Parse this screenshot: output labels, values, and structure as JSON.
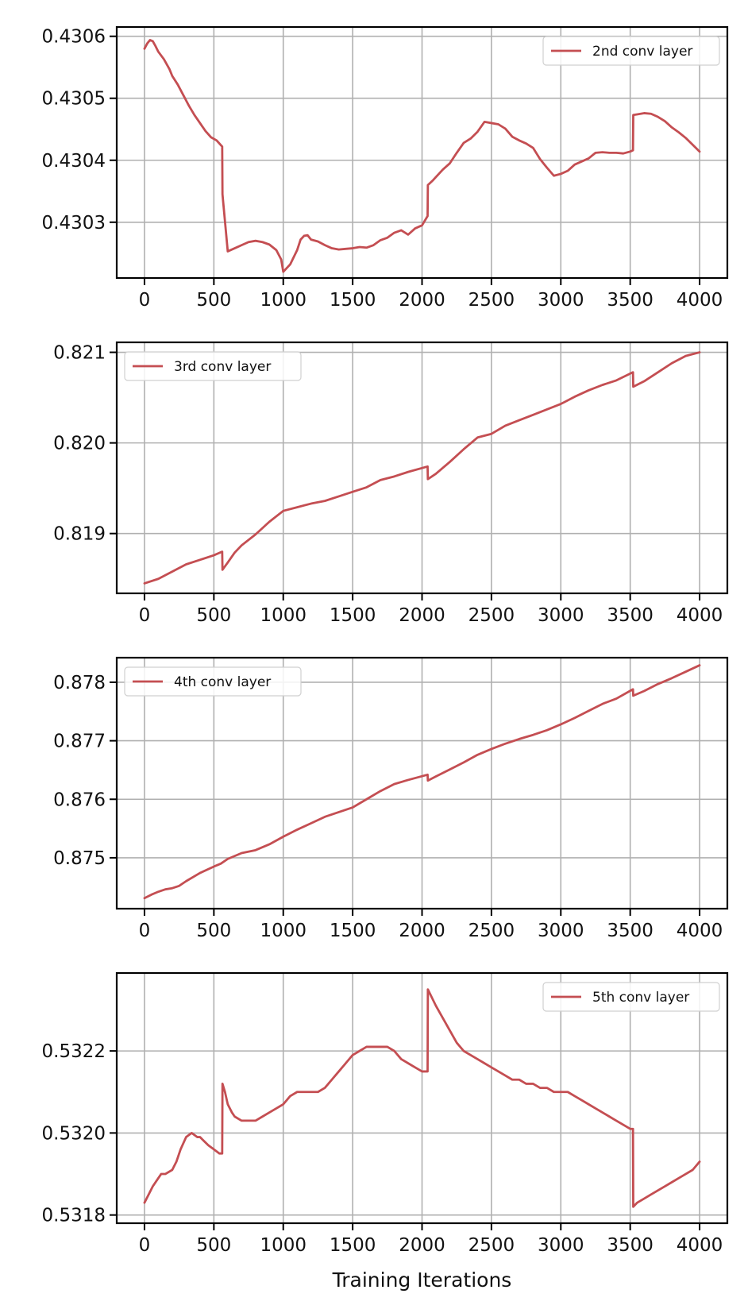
{
  "chart_data": [
    {
      "type": "line",
      "xlabel": "",
      "ylabel": "",
      "xlim": [
        -200,
        4200
      ],
      "xticks": [
        0,
        500,
        1000,
        1500,
        2000,
        2500,
        3000,
        3500,
        4000
      ],
      "ylim": [
        0.43021,
        0.430615
      ],
      "yticks": [
        0.4303,
        0.4304,
        0.4305,
        0.4306
      ],
      "ytick_decimals": 4,
      "grid": true,
      "legend": "top-right",
      "color": "#c44e52",
      "series": [
        {
          "name": "2nd conv layer",
          "x": [
            0,
            20,
            40,
            60,
            80,
            100,
            140,
            180,
            200,
            240,
            280,
            320,
            360,
            400,
            440,
            480,
            520,
            560,
            562,
            600,
            650,
            700,
            750,
            800,
            850,
            900,
            950,
            985,
            1000,
            1050,
            1100,
            1125,
            1150,
            1175,
            1200,
            1250,
            1300,
            1350,
            1400,
            1450,
            1500,
            1550,
            1600,
            1650,
            1700,
            1750,
            1800,
            1850,
            1900,
            1950,
            2000,
            2040,
            2042,
            2080,
            2150,
            2200,
            2250,
            2300,
            2350,
            2400,
            2450,
            2500,
            2550,
            2600,
            2650,
            2700,
            2750,
            2800,
            2850,
            2900,
            2950,
            3000,
            3050,
            3100,
            3150,
            3200,
            3250,
            3300,
            3350,
            3400,
            3450,
            3500,
            3520,
            3522,
            3550,
            3600,
            3650,
            3700,
            3750,
            3800,
            3850,
            3900,
            3950,
            4000
          ],
          "values": [
            0.43058,
            0.4305885,
            0.430594,
            0.430592,
            0.430584,
            0.430575,
            0.430563,
            0.430547,
            0.430536,
            0.430522,
            0.430505,
            0.430488,
            0.430473,
            0.43046,
            0.430447,
            0.430437,
            0.430432,
            0.430422,
            0.430345,
            0.430253,
            0.430258,
            0.430263,
            0.430268,
            0.43027,
            0.430268,
            0.430264,
            0.430255,
            0.43024,
            0.43022,
            0.430232,
            0.430255,
            0.430272,
            0.430278,
            0.430279,
            0.430272,
            0.430269,
            0.430263,
            0.430258,
            0.430256,
            0.430257,
            0.430258,
            0.43026,
            0.430259,
            0.430263,
            0.430271,
            0.430275,
            0.430283,
            0.430287,
            0.43028,
            0.43029,
            0.430295,
            0.43031,
            0.43036,
            0.430368,
            0.430385,
            0.430395,
            0.430412,
            0.430428,
            0.430435,
            0.430446,
            0.430462,
            0.43046,
            0.430458,
            0.430451,
            0.430438,
            0.430432,
            0.430427,
            0.43042,
            0.430402,
            0.430388,
            0.430375,
            0.430378,
            0.430383,
            0.430393,
            0.430398,
            0.430403,
            0.430412,
            0.430413,
            0.430412,
            0.430412,
            0.430411,
            0.430414,
            0.430416,
            0.430473,
            0.430474,
            0.430476,
            0.430475,
            0.43047,
            0.430463,
            0.430453,
            0.430445,
            0.430436,
            0.430425,
            0.430414
          ]
        }
      ]
    },
    {
      "type": "line",
      "xlabel": "",
      "ylabel": "",
      "xlim": [
        -200,
        4200
      ],
      "xticks": [
        0,
        500,
        1000,
        1500,
        2000,
        2500,
        3000,
        3500,
        4000
      ],
      "ylim": [
        0.81834,
        0.82111
      ],
      "yticks": [
        0.819,
        0.82,
        0.821
      ],
      "ytick_decimals": 3,
      "grid": true,
      "legend": "top-left",
      "color": "#c44e52",
      "series": [
        {
          "name": "3rd conv layer",
          "x": [
            0,
            100,
            200,
            300,
            400,
            500,
            560,
            562,
            600,
            650,
            700,
            800,
            900,
            1000,
            1100,
            1200,
            1300,
            1400,
            1500,
            1600,
            1700,
            1800,
            1900,
            2040,
            2042,
            2100,
            2200,
            2300,
            2400,
            2500,
            2600,
            2700,
            2800,
            2900,
            3000,
            3100,
            3200,
            3300,
            3400,
            3520,
            3522,
            3600,
            3700,
            3800,
            3900,
            4000
          ],
          "values": [
            0.81845,
            0.8185,
            0.81858,
            0.81866,
            0.81871,
            0.81876,
            0.8188,
            0.8186,
            0.81868,
            0.81879,
            0.81887,
            0.81899,
            0.81913,
            0.81925,
            0.81929,
            0.81933,
            0.81936,
            0.81941,
            0.81946,
            0.81951,
            0.81959,
            0.81963,
            0.81968,
            0.81974,
            0.8196,
            0.81966,
            0.81979,
            0.81993,
            0.82006,
            0.8201,
            0.82019,
            0.82025,
            0.82031,
            0.82037,
            0.82043,
            0.82051,
            0.82058,
            0.82064,
            0.82069,
            0.82078,
            0.82062,
            0.82068,
            0.82078,
            0.82088,
            0.82096,
            0.821
          ]
        }
      ]
    },
    {
      "type": "line",
      "xlabel": "",
      "ylabel": "",
      "xlim": [
        -200,
        4200
      ],
      "xticks": [
        0,
        500,
        1000,
        1500,
        2000,
        2500,
        3000,
        3500,
        4000
      ],
      "ylim": [
        0.87413,
        0.87842
      ],
      "yticks": [
        0.875,
        0.876,
        0.877,
        0.878
      ],
      "ytick_decimals": 3,
      "grid": true,
      "legend": "top-left",
      "color": "#c44e52",
      "series": [
        {
          "name": "4th conv layer",
          "x": [
            0,
            50,
            100,
            150,
            200,
            250,
            300,
            400,
            500,
            550,
            600,
            700,
            800,
            900,
            1000,
            1100,
            1200,
            1300,
            1400,
            1500,
            1600,
            1700,
            1800,
            1900,
            2040,
            2042,
            2100,
            2200,
            2300,
            2400,
            2500,
            2600,
            2700,
            2800,
            2900,
            3000,
            3100,
            3200,
            3300,
            3400,
            3520,
            3522,
            3600,
            3700,
            3800,
            3900,
            4000
          ],
          "values": [
            0.87431,
            0.87437,
            0.87442,
            0.87446,
            0.87448,
            0.87452,
            0.8746,
            0.87474,
            0.87485,
            0.8749,
            0.87498,
            0.87508,
            0.87513,
            0.87523,
            0.87536,
            0.87548,
            0.87559,
            0.8757,
            0.87578,
            0.87586,
            0.876,
            0.87614,
            0.87626,
            0.87633,
            0.87642,
            0.87632,
            0.87639,
            0.87651,
            0.87663,
            0.87676,
            0.87686,
            0.87695,
            0.87703,
            0.8771,
            0.87718,
            0.87728,
            0.87739,
            0.87751,
            0.87763,
            0.87772,
            0.87788,
            0.87777,
            0.87785,
            0.87797,
            0.87807,
            0.87818,
            0.87829
          ]
        }
      ]
    },
    {
      "type": "line",
      "xlabel": "Training Iterations",
      "ylabel": "",
      "xlim": [
        -200,
        4200
      ],
      "xticks": [
        0,
        500,
        1000,
        1500,
        2000,
        2500,
        3000,
        3500,
        4000
      ],
      "ylim": [
        0.53178,
        0.53239
      ],
      "yticks": [
        0.5318,
        0.532,
        0.5322
      ],
      "ytick_decimals": 4,
      "grid": true,
      "legend": "top-right",
      "color": "#c44e52",
      "series": [
        {
          "name": "5th conv layer",
          "x": [
            0,
            30,
            60,
            100,
            120,
            150,
            200,
            230,
            260,
            300,
            340,
            380,
            400,
            430,
            460,
            500,
            540,
            560,
            562,
            580,
            600,
            630,
            650,
            700,
            750,
            800,
            850,
            900,
            950,
            1000,
            1050,
            1100,
            1150,
            1200,
            1250,
            1300,
            1350,
            1400,
            1450,
            1500,
            1550,
            1600,
            1650,
            1700,
            1750,
            1800,
            1850,
            1900,
            1950,
            2000,
            2040,
            2042,
            2100,
            2150,
            2200,
            2250,
            2300,
            2350,
            2400,
            2450,
            2500,
            2550,
            2600,
            2650,
            2700,
            2750,
            2800,
            2850,
            2900,
            2950,
            3000,
            3050,
            3100,
            3150,
            3200,
            3250,
            3300,
            3350,
            3400,
            3450,
            3500,
            3520,
            3522,
            3550,
            3600,
            3650,
            3700,
            3750,
            3800,
            3850,
            3900,
            3950,
            4000
          ],
          "values": [
            0.53183,
            0.53185,
            0.53187,
            0.53189,
            0.5319,
            0.5319,
            0.53191,
            0.53193,
            0.53196,
            0.53199,
            0.532,
            0.53199,
            0.53199,
            0.53198,
            0.53197,
            0.53196,
            0.53195,
            0.53195,
            0.53212,
            0.5321,
            0.53207,
            0.53205,
            0.53204,
            0.53203,
            0.53203,
            0.53203,
            0.53204,
            0.53205,
            0.53206,
            0.53207,
            0.53209,
            0.5321,
            0.5321,
            0.5321,
            0.5321,
            0.53211,
            0.53213,
            0.53215,
            0.53217,
            0.53219,
            0.5322,
            0.53221,
            0.53221,
            0.53221,
            0.53221,
            0.5322,
            0.53218,
            0.53217,
            0.53216,
            0.53215,
            0.53215,
            0.53235,
            0.53231,
            0.53228,
            0.53225,
            0.53222,
            0.5322,
            0.53219,
            0.53218,
            0.53217,
            0.53216,
            0.53215,
            0.53214,
            0.53213,
            0.53213,
            0.53212,
            0.53212,
            0.53211,
            0.53211,
            0.5321,
            0.5321,
            0.5321,
            0.53209,
            0.53208,
            0.53207,
            0.53206,
            0.53205,
            0.53204,
            0.53203,
            0.53202,
            0.53201,
            0.53201,
            0.53182,
            0.53183,
            0.53184,
            0.53185,
            0.53186,
            0.53187,
            0.53188,
            0.53189,
            0.5319,
            0.53191,
            0.53193
          ]
        }
      ]
    }
  ]
}
